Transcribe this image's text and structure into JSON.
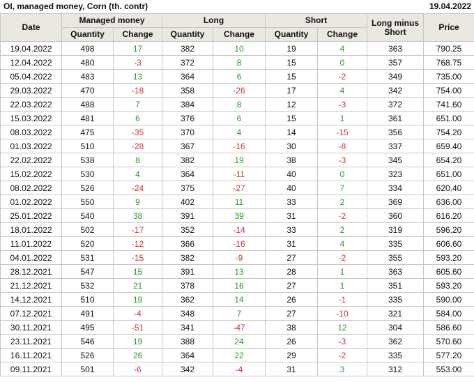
{
  "title": "OI, managed money, Corn (th. contr)",
  "report_date": "19.04.2022",
  "colors": {
    "positive": "#229b22",
    "negative": "#cc3333",
    "header_bg": "#ebe8e1",
    "grid": "#c6c6c6"
  },
  "table": {
    "header": {
      "date": "Date",
      "managed_money": "Managed money",
      "long": "Long",
      "short": "Short",
      "long_minus_short": "Long minus Short",
      "price": "Price",
      "quantity": "Quantity",
      "change": "Change"
    },
    "columns": [
      "date",
      "mm_quantity",
      "mm_change",
      "long_quantity",
      "long_change",
      "short_quantity",
      "short_change",
      "long_minus_short",
      "price"
    ],
    "change_column_indexes": [
      2,
      4,
      6
    ],
    "rows": [
      [
        "19.04.2022",
        498,
        17,
        382,
        10,
        19,
        4,
        363,
        "790.25"
      ],
      [
        "12.04.2022",
        480,
        -3,
        372,
        8,
        15,
        0,
        357,
        "768.75"
      ],
      [
        "05.04.2022",
        483,
        13,
        364,
        6,
        15,
        -2,
        349,
        "735.00"
      ],
      [
        "29.03.2022",
        470,
        -18,
        358,
        -26,
        17,
        4,
        342,
        "754.00"
      ],
      [
        "22.03.2022",
        488,
        7,
        384,
        8,
        12,
        -3,
        372,
        "741.60"
      ],
      [
        "15.03.2022",
        481,
        6,
        376,
        6,
        15,
        1,
        361,
        "651.00"
      ],
      [
        "08.03.2022",
        475,
        -35,
        370,
        4,
        14,
        -15,
        356,
        "754.20"
      ],
      [
        "01.03.2022",
        510,
        -28,
        367,
        -16,
        30,
        -8,
        337,
        "659.40"
      ],
      [
        "22.02.2022",
        538,
        8,
        382,
        19,
        38,
        -3,
        345,
        "654.20"
      ],
      [
        "15.02.2022",
        530,
        4,
        364,
        -11,
        40,
        0,
        323,
        "651.00"
      ],
      [
        "08.02.2022",
        526,
        -24,
        375,
        -27,
        40,
        7,
        334,
        "620.40"
      ],
      [
        "01.02.2022",
        550,
        9,
        402,
        11,
        33,
        2,
        369,
        "636.00"
      ],
      [
        "25.01.2022",
        540,
        38,
        391,
        39,
        31,
        -2,
        360,
        "616.20"
      ],
      [
        "18.01.2022",
        502,
        -17,
        352,
        -14,
        33,
        2,
        319,
        "596.20"
      ],
      [
        "11.01.2022",
        520,
        -12,
        366,
        -16,
        31,
        4,
        335,
        "606.60"
      ],
      [
        "04.01.2022",
        531,
        -15,
        382,
        -9,
        27,
        -2,
        355,
        "593.20"
      ],
      [
        "28.12.2021",
        547,
        15,
        391,
        13,
        28,
        1,
        363,
        "605.60"
      ],
      [
        "21.12.2021",
        532,
        21,
        378,
        16,
        27,
        1,
        351,
        "593.20"
      ],
      [
        "14.12.2021",
        510,
        19,
        362,
        14,
        26,
        -1,
        335,
        "590.00"
      ],
      [
        "07.12.2021",
        491,
        -4,
        348,
        7,
        27,
        -10,
        321,
        "584.00"
      ],
      [
        "30.11.2021",
        495,
        -51,
        341,
        -47,
        38,
        12,
        304,
        "586.60"
      ],
      [
        "23.11.2021",
        546,
        19,
        388,
        24,
        26,
        -3,
        362,
        "570.60"
      ],
      [
        "16.11.2021",
        526,
        26,
        364,
        22,
        29,
        -2,
        335,
        "577.20"
      ],
      [
        "09.11.2021",
        501,
        -6,
        342,
        -4,
        31,
        3,
        312,
        "553.00"
      ]
    ]
  }
}
